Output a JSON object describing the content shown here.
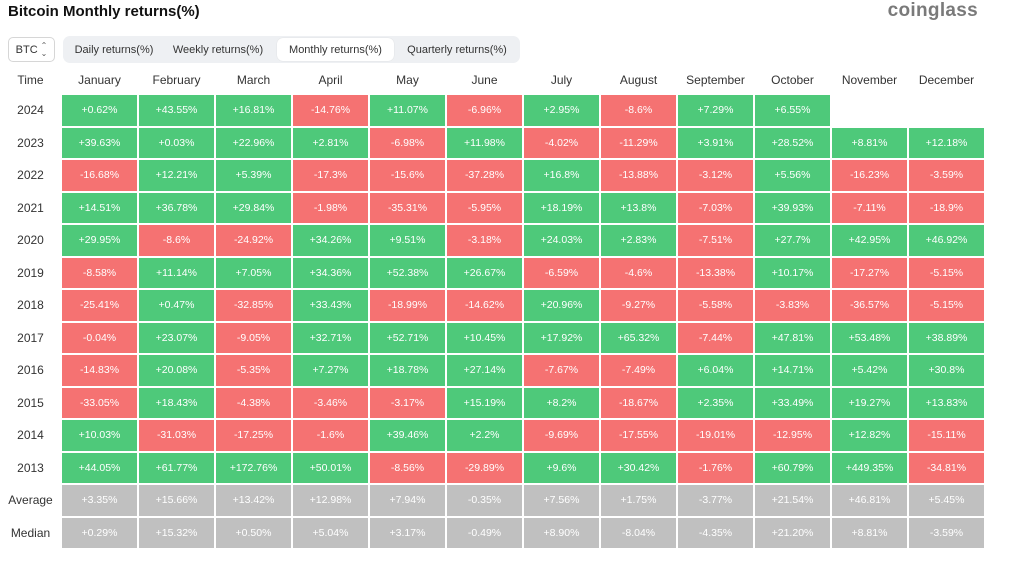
{
  "header": {
    "title": "Bitcoin Monthly returns(%)",
    "brand": "coinglass"
  },
  "asset_select": {
    "value": "BTC"
  },
  "tabs": [
    {
      "label": "Daily returns(%)",
      "active": false
    },
    {
      "label": "Weekly returns(%)",
      "active": false
    },
    {
      "label": "Monthly returns(%)",
      "active": true
    },
    {
      "label": "Quarterly returns(%)",
      "active": false
    }
  ],
  "colors": {
    "positive": "#4ec97a",
    "negative": "#f57272",
    "stat": "#c0c0c0"
  },
  "table": {
    "time_header": "Time",
    "months": [
      "January",
      "February",
      "March",
      "April",
      "May",
      "June",
      "July",
      "August",
      "September",
      "October",
      "November",
      "December"
    ],
    "rows": [
      {
        "label": "2024",
        "type": "year",
        "values": [
          "+0.62%",
          "+43.55%",
          "+16.81%",
          "-14.76%",
          "+11.07%",
          "-6.96%",
          "+2.95%",
          "-8.6%",
          "+7.29%",
          "+6.55%",
          "",
          ""
        ]
      },
      {
        "label": "2023",
        "type": "year",
        "values": [
          "+39.63%",
          "+0.03%",
          "+22.96%",
          "+2.81%",
          "-6.98%",
          "+11.98%",
          "-4.02%",
          "-11.29%",
          "+3.91%",
          "+28.52%",
          "+8.81%",
          "+12.18%"
        ]
      },
      {
        "label": "2022",
        "type": "year",
        "values": [
          "-16.68%",
          "+12.21%",
          "+5.39%",
          "-17.3%",
          "-15.6%",
          "-37.28%",
          "+16.8%",
          "-13.88%",
          "-3.12%",
          "+5.56%",
          "-16.23%",
          "-3.59%"
        ]
      },
      {
        "label": "2021",
        "type": "year",
        "values": [
          "+14.51%",
          "+36.78%",
          "+29.84%",
          "-1.98%",
          "-35.31%",
          "-5.95%",
          "+18.19%",
          "+13.8%",
          "-7.03%",
          "+39.93%",
          "-7.11%",
          "-18.9%"
        ]
      },
      {
        "label": "2020",
        "type": "year",
        "values": [
          "+29.95%",
          "-8.6%",
          "-24.92%",
          "+34.26%",
          "+9.51%",
          "-3.18%",
          "+24.03%",
          "+2.83%",
          "-7.51%",
          "+27.7%",
          "+42.95%",
          "+46.92%"
        ]
      },
      {
        "label": "2019",
        "type": "year",
        "values": [
          "-8.58%",
          "+11.14%",
          "+7.05%",
          "+34.36%",
          "+52.38%",
          "+26.67%",
          "-6.59%",
          "-4.6%",
          "-13.38%",
          "+10.17%",
          "-17.27%",
          "-5.15%"
        ]
      },
      {
        "label": "2018",
        "type": "year",
        "values": [
          "-25.41%",
          "+0.47%",
          "-32.85%",
          "+33.43%",
          "-18.99%",
          "-14.62%",
          "+20.96%",
          "-9.27%",
          "-5.58%",
          "-3.83%",
          "-36.57%",
          "-5.15%"
        ]
      },
      {
        "label": "2017",
        "type": "year",
        "values": [
          "-0.04%",
          "+23.07%",
          "-9.05%",
          "+32.71%",
          "+52.71%",
          "+10.45%",
          "+17.92%",
          "+65.32%",
          "-7.44%",
          "+47.81%",
          "+53.48%",
          "+38.89%"
        ]
      },
      {
        "label": "2016",
        "type": "year",
        "values": [
          "-14.83%",
          "+20.08%",
          "-5.35%",
          "+7.27%",
          "+18.78%",
          "+27.14%",
          "-7.67%",
          "-7.49%",
          "+6.04%",
          "+14.71%",
          "+5.42%",
          "+30.8%"
        ]
      },
      {
        "label": "2015",
        "type": "year",
        "values": [
          "-33.05%",
          "+18.43%",
          "-4.38%",
          "-3.46%",
          "-3.17%",
          "+15.19%",
          "+8.2%",
          "-18.67%",
          "+2.35%",
          "+33.49%",
          "+19.27%",
          "+13.83%"
        ]
      },
      {
        "label": "2014",
        "type": "year",
        "values": [
          "+10.03%",
          "-31.03%",
          "-17.25%",
          "-1.6%",
          "+39.46%",
          "+2.2%",
          "-9.69%",
          "-17.55%",
          "-19.01%",
          "-12.95%",
          "+12.82%",
          "-15.11%"
        ]
      },
      {
        "label": "2013",
        "type": "year",
        "values": [
          "+44.05%",
          "+61.77%",
          "+172.76%",
          "+50.01%",
          "-8.56%",
          "-29.89%",
          "+9.6%",
          "+30.42%",
          "-1.76%",
          "+60.79%",
          "+449.35%",
          "-34.81%"
        ]
      },
      {
        "label": "Average",
        "type": "stat",
        "values": [
          "+3.35%",
          "+15.66%",
          "+13.42%",
          "+12.98%",
          "+7.94%",
          "-0.35%",
          "+7.56%",
          "+1.75%",
          "-3.77%",
          "+21.54%",
          "+46.81%",
          "+5.45%"
        ]
      },
      {
        "label": "Median",
        "type": "stat",
        "values": [
          "+0.29%",
          "+15.32%",
          "+0.50%",
          "+5.04%",
          "+3.17%",
          "-0.49%",
          "+8.90%",
          "-8.04%",
          "-4.35%",
          "+21.20%",
          "+8.81%",
          "-3.59%"
        ]
      }
    ]
  }
}
